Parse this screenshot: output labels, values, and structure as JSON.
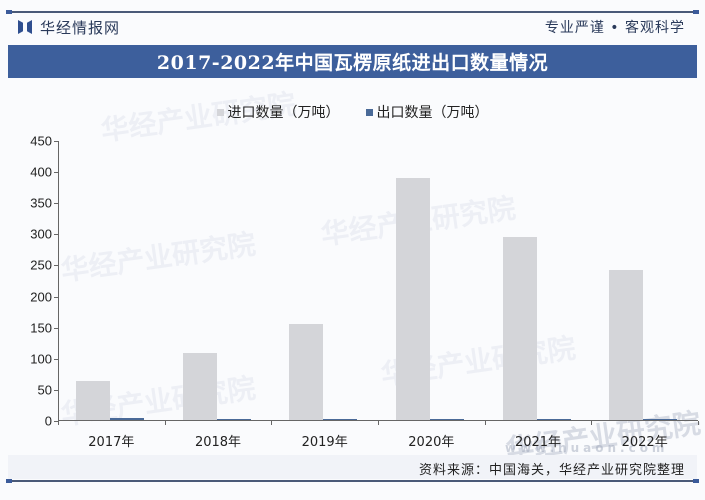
{
  "header": {
    "brand_name": "华经情报网",
    "slogan": "专业严谨 • 客观科学"
  },
  "title": "2017-2022年中国瓦楞原纸进出口数量情况",
  "legend": [
    {
      "label": "进口数量（万吨）",
      "color": "#d4d5d9"
    },
    {
      "label": "出口数量（万吨）",
      "color": "#4a6a98"
    }
  ],
  "watermark": "华经产业研究院",
  "watermark_url": "www.huaon.com",
  "source": "资料来源：中国海关，华经产业研究院整理",
  "chart_data": {
    "type": "bar",
    "title": "2017-2022年中国瓦楞原纸进出口数量情况",
    "xlabel": "",
    "ylabel": "",
    "categories": [
      "2017年",
      "2018年",
      "2019年",
      "2020年",
      "2021年",
      "2022年"
    ],
    "series": [
      {
        "name": "进口数量（万吨）",
        "color": "#d4d5d9",
        "values": [
          63,
          108,
          154,
          389,
          294,
          241
        ]
      },
      {
        "name": "出口数量（万吨）",
        "color": "#4a6a98",
        "values": [
          3,
          1,
          1,
          1,
          1,
          1
        ]
      }
    ],
    "ylim": [
      0,
      450
    ],
    "yticks": [
      0,
      50,
      100,
      150,
      200,
      250,
      300,
      350,
      400,
      450
    ],
    "grid": false,
    "legend_position": "top"
  }
}
